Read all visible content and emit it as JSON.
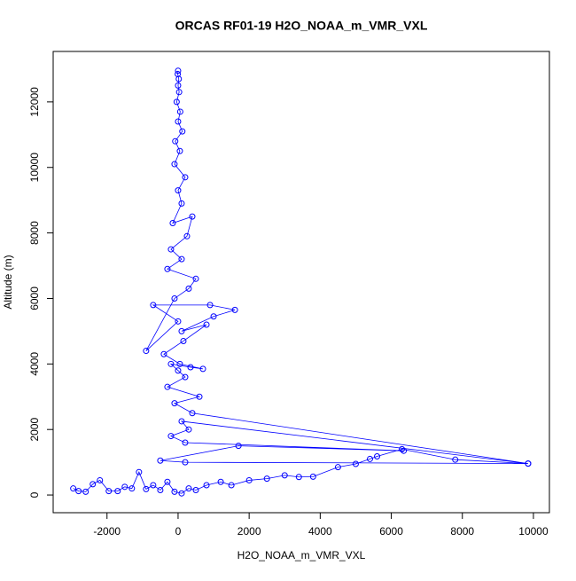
{
  "chart_data": {
    "type": "scatter",
    "title": "ORCAS RF01-19 H2O_NOAA_m_VMR_VXL",
    "x_label": "H2O_NOAA_m_VMR_VXL",
    "y_label": "Altitude (m)",
    "color": "#0000ff",
    "connect": true,
    "xlim": [
      -3515,
      10450
    ],
    "ylim": [
      -540,
      13540
    ],
    "xticks": [
      -2000,
      0,
      2000,
      4000,
      6000,
      8000,
      10000
    ],
    "yticks": [
      0,
      2000,
      4000,
      6000,
      8000,
      10000,
      12000
    ],
    "x": [
      -2950,
      -2800,
      -2600,
      -2400,
      -2200,
      -1950,
      -1700,
      -1500,
      -1300,
      -1100,
      -900,
      -700,
      -500,
      -300,
      -100,
      100,
      300,
      500,
      800,
      1200,
      1500,
      2000,
      2500,
      3000,
      3400,
      3800,
      4500,
      5000,
      5400,
      5600,
      6300,
      7800,
      9850,
      200,
      -500,
      1700,
      6350,
      200,
      -200,
      300,
      100,
      9850,
      400,
      -100,
      600,
      -300,
      200,
      0,
      -200,
      350,
      700,
      50,
      -400,
      150,
      800,
      100,
      1000,
      1600,
      900,
      -700,
      0,
      -900,
      -100,
      300,
      500,
      -300,
      100,
      -200,
      250,
      400,
      -150,
      100,
      0,
      200,
      -100,
      50,
      -80,
      120,
      0,
      60,
      -40,
      30,
      0,
      20,
      -10,
      0
    ],
    "y": [
      200,
      120,
      100,
      330,
      450,
      120,
      120,
      250,
      200,
      700,
      180,
      300,
      150,
      400,
      100,
      50,
      200,
      150,
      300,
      400,
      300,
      450,
      500,
      600,
      550,
      560,
      850,
      950,
      1100,
      1180,
      1400,
      1080,
      960,
      1000,
      1050,
      1500,
      1350,
      1600,
      1800,
      2000,
      2250,
      960,
      2500,
      2800,
      3000,
      3300,
      3600,
      3800,
      4000,
      3900,
      3850,
      4000,
      4300,
      4700,
      5200,
      5000,
      5450,
      5650,
      5800,
      5800,
      5300,
      4400,
      6000,
      6300,
      6600,
      6900,
      7200,
      7500,
      7900,
      8500,
      8300,
      8900,
      9300,
      9700,
      10100,
      10500,
      10800,
      11100,
      11400,
      11700,
      12000,
      12300,
      12500,
      12700,
      12850,
      12950
    ]
  }
}
